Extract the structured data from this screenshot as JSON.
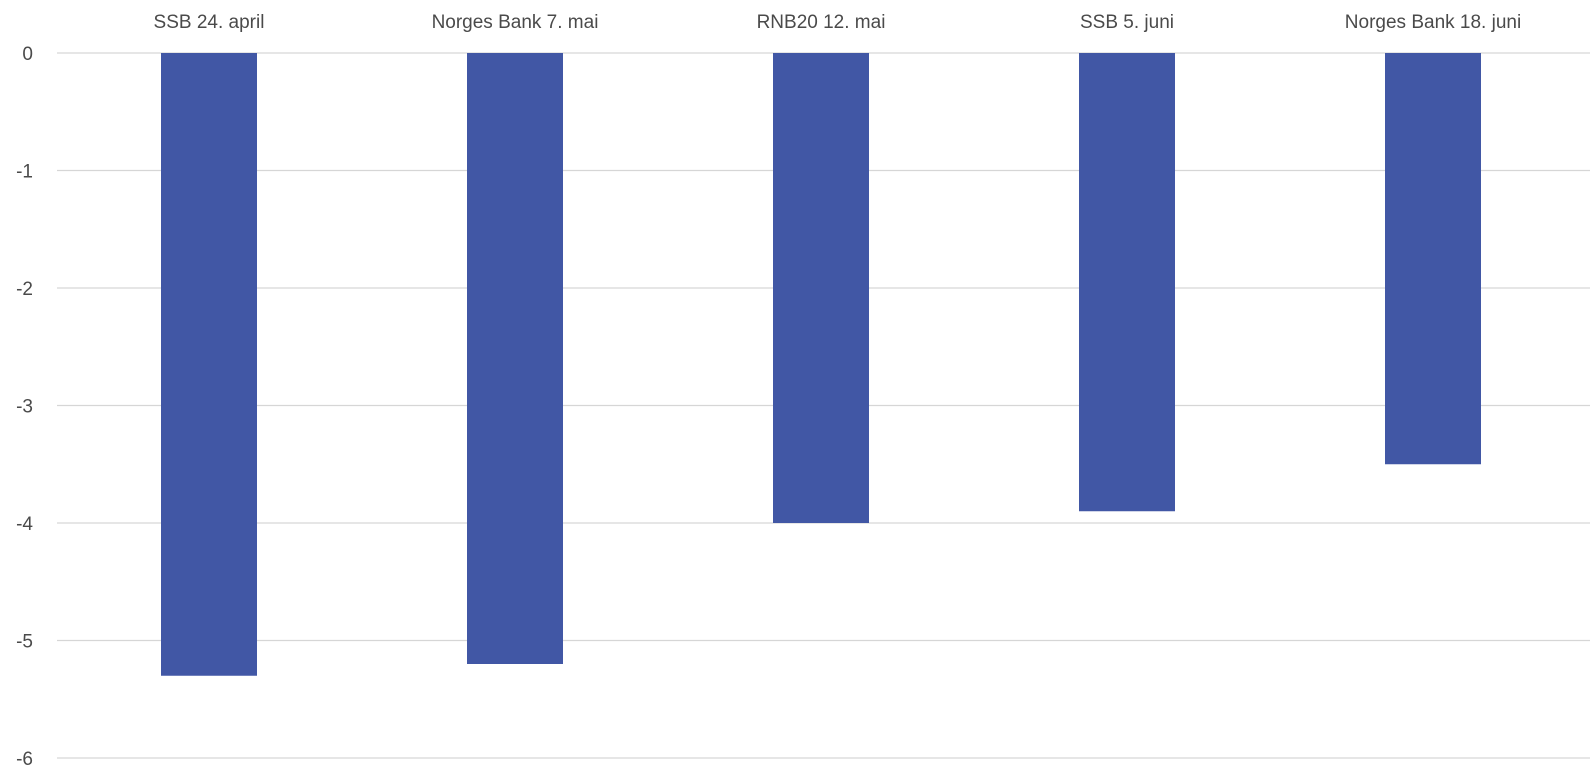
{
  "chart_data": {
    "type": "bar",
    "categories": [
      "SSB 24. april",
      "Norges Bank 7. mai",
      "RNB20 12. mai",
      "SSB 5. juni",
      "Norges Bank 18. juni"
    ],
    "values": [
      -5.3,
      -5.2,
      -4.0,
      -3.9,
      -3.5
    ],
    "ylim": [
      -6,
      0
    ],
    "y_ticks": [
      0,
      -1,
      -2,
      -3,
      -4,
      -5,
      -6
    ],
    "category_axis_position": "top",
    "grid": true,
    "bar_color": "#4157a5",
    "grid_color": "#d6d6d6",
    "text_color": "#4a4a4a"
  }
}
